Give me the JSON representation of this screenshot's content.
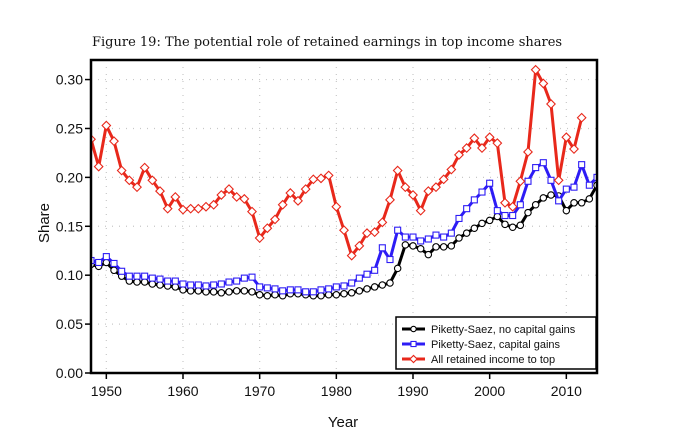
{
  "figure": {
    "caption": "Figure 19: The potential role of retained earnings in top income shares"
  },
  "chart_data": {
    "type": "line",
    "xlabel": "Year",
    "ylabel": "Share",
    "xlim": [
      1948,
      2014
    ],
    "ylim": [
      0.0,
      0.32
    ],
    "x_ticks": [
      1950,
      1960,
      1970,
      1980,
      1990,
      2000,
      2010
    ],
    "x_tick_labels": [
      "1950",
      "1960",
      "1970",
      "1980",
      "1990",
      "2000",
      "2010"
    ],
    "y_ticks": [
      0.0,
      0.05,
      0.1,
      0.15,
      0.2,
      0.25,
      0.3
    ],
    "y_tick_labels": [
      "0.00",
      "0.05",
      "0.10",
      "0.15",
      "0.20",
      "0.25",
      "0.30"
    ],
    "grid": true,
    "legend_position": "bottom-right",
    "series": [
      {
        "name": "Piketty-Saez, no capital gains",
        "color": "#000000",
        "marker": "circle",
        "x": [
          1948,
          1949,
          1950,
          1951,
          1952,
          1953,
          1954,
          1955,
          1956,
          1957,
          1958,
          1959,
          1960,
          1961,
          1962,
          1963,
          1964,
          1965,
          1966,
          1967,
          1968,
          1969,
          1970,
          1971,
          1972,
          1973,
          1974,
          1975,
          1976,
          1977,
          1978,
          1979,
          1980,
          1981,
          1982,
          1983,
          1984,
          1985,
          1986,
          1987,
          1988,
          1989,
          1990,
          1991,
          1992,
          1993,
          1994,
          1995,
          1996,
          1997,
          1998,
          1999,
          2000,
          2001,
          2002,
          2003,
          2004,
          2005,
          2006,
          2007,
          2008,
          2009,
          2010,
          2011,
          2012,
          2013,
          2014
        ],
        "y": [
          0.111,
          0.109,
          0.113,
          0.105,
          0.099,
          0.094,
          0.093,
          0.093,
          0.091,
          0.09,
          0.089,
          0.088,
          0.085,
          0.084,
          0.084,
          0.083,
          0.083,
          0.082,
          0.083,
          0.084,
          0.084,
          0.083,
          0.08,
          0.079,
          0.08,
          0.079,
          0.081,
          0.081,
          0.08,
          0.079,
          0.079,
          0.08,
          0.08,
          0.081,
          0.082,
          0.084,
          0.086,
          0.088,
          0.09,
          0.092,
          0.107,
          0.131,
          0.13,
          0.127,
          0.121,
          0.129,
          0.129,
          0.13,
          0.138,
          0.143,
          0.148,
          0.153,
          0.156,
          0.16,
          0.152,
          0.149,
          0.151,
          0.164,
          0.172,
          0.179,
          0.182,
          0.181,
          0.166,
          0.174,
          0.174,
          0.178,
          0.192
        ]
      },
      {
        "name": "Piketty-Saez, capital gains",
        "color": "#2d1cf5",
        "marker": "square",
        "x": [
          1948,
          1949,
          1950,
          1951,
          1952,
          1953,
          1954,
          1955,
          1956,
          1957,
          1958,
          1959,
          1960,
          1961,
          1962,
          1963,
          1964,
          1965,
          1966,
          1967,
          1968,
          1969,
          1970,
          1971,
          1972,
          1973,
          1974,
          1975,
          1976,
          1977,
          1978,
          1979,
          1980,
          1981,
          1982,
          1983,
          1984,
          1985,
          1986,
          1987,
          1988,
          1989,
          1990,
          1991,
          1992,
          1993,
          1994,
          1995,
          1996,
          1997,
          1998,
          1999,
          2000,
          2001,
          2002,
          2003,
          2004,
          2005,
          2006,
          2007,
          2008,
          2009,
          2010,
          2011,
          2012,
          2013,
          2014
        ],
        "y": [
          0.115,
          0.113,
          0.119,
          0.112,
          0.104,
          0.099,
          0.099,
          0.099,
          0.097,
          0.096,
          0.094,
          0.094,
          0.091,
          0.09,
          0.09,
          0.089,
          0.09,
          0.091,
          0.093,
          0.094,
          0.097,
          0.098,
          0.088,
          0.087,
          0.086,
          0.084,
          0.085,
          0.085,
          0.083,
          0.083,
          0.085,
          0.086,
          0.088,
          0.089,
          0.092,
          0.097,
          0.101,
          0.105,
          0.128,
          0.116,
          0.146,
          0.139,
          0.139,
          0.135,
          0.137,
          0.141,
          0.139,
          0.143,
          0.158,
          0.168,
          0.177,
          0.185,
          0.194,
          0.166,
          0.161,
          0.161,
          0.172,
          0.196,
          0.21,
          0.215,
          0.197,
          0.176,
          0.188,
          0.19,
          0.213,
          0.192,
          0.2
        ]
      },
      {
        "name": "All retained income to top",
        "color": "#e8281b",
        "marker": "diamond",
        "x": [
          1948,
          1949,
          1950,
          1951,
          1952,
          1953,
          1954,
          1955,
          1956,
          1957,
          1958,
          1959,
          1960,
          1961,
          1962,
          1963,
          1964,
          1965,
          1966,
          1967,
          1968,
          1969,
          1970,
          1971,
          1972,
          1973,
          1974,
          1975,
          1976,
          1977,
          1978,
          1979,
          1980,
          1981,
          1982,
          1983,
          1984,
          1985,
          1986,
          1987,
          1988,
          1989,
          1990,
          1991,
          1992,
          1993,
          1994,
          1995,
          1996,
          1997,
          1998,
          1999,
          2000,
          2001,
          2002,
          2003,
          2004,
          2005,
          2006,
          2007,
          2008,
          2009,
          2010,
          2011,
          2012
        ],
        "y": [
          0.239,
          0.211,
          0.253,
          0.237,
          0.207,
          0.197,
          0.19,
          0.21,
          0.197,
          0.186,
          0.168,
          0.18,
          0.167,
          0.168,
          0.168,
          0.17,
          0.172,
          0.182,
          0.188,
          0.18,
          0.178,
          0.165,
          0.138,
          0.148,
          0.157,
          0.172,
          0.184,
          0.176,
          0.188,
          0.198,
          0.199,
          0.202,
          0.17,
          0.146,
          0.12,
          0.13,
          0.143,
          0.144,
          0.154,
          0.177,
          0.207,
          0.19,
          0.182,
          0.166,
          0.186,
          0.19,
          0.198,
          0.208,
          0.223,
          0.23,
          0.24,
          0.23,
          0.241,
          0.235,
          0.174,
          0.17,
          0.196,
          0.226,
          0.31,
          0.296,
          0.275,
          0.197,
          0.241,
          0.229,
          0.261
        ]
      }
    ]
  }
}
